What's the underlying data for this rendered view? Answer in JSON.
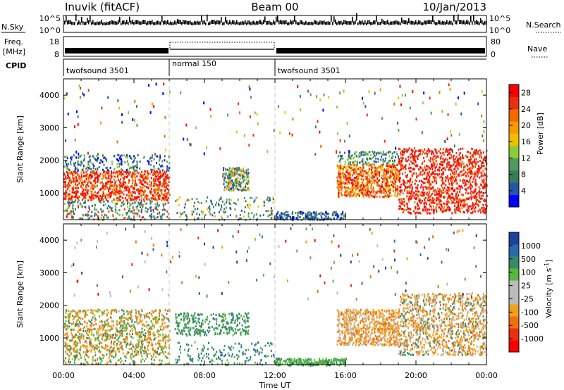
{
  "header": {
    "station": "Inuvik (fitACF)",
    "beam": "Beam 00",
    "date": "10/Jan/2013"
  },
  "noise_panel": {
    "left_label": "N.Sky",
    "right_label": "N.Search",
    "left_ticks": [
      "10^5",
      "10^0"
    ],
    "right_ticks": [
      "10^5",
      "10^0"
    ]
  },
  "freq_panel": {
    "left_label_1": "Freq.",
    "left_label_2": "[MHz]",
    "right_label": "Nave",
    "left_ticks": [
      "18",
      "8"
    ],
    "right_ticks": [
      "80",
      "0"
    ]
  },
  "cpid_panel": {
    "label": "CPID",
    "segments": [
      {
        "name": "twofsound 3501",
        "start": "00:00",
        "end": "06:00"
      },
      {
        "name": "normal 150",
        "start": "06:00",
        "end": "12:00"
      },
      {
        "name": "twofsound 3501",
        "start": "12:00",
        "end": "24:00"
      }
    ]
  },
  "x_axis": {
    "label": "Time UT",
    "ticks": [
      "00:00",
      "04:00",
      "08:00",
      "12:00",
      "16:00",
      "20:00",
      "00:00"
    ],
    "range_hours": [
      0,
      24
    ]
  },
  "colors": {
    "power": [
      "#0000ff",
      "#2356a8",
      "#3c7a5a",
      "#4f9a5e",
      "#8ccc3c",
      "#f0c000",
      "#f59a00",
      "#f06a00",
      "#e83010",
      "#ff0000"
    ],
    "velocity": [
      "#2040a0",
      "#2a6aa8",
      "#3a8a6a",
      "#57b840",
      "#bbbbbb",
      "#bbbbbb",
      "#f0a020",
      "#f07010",
      "#e83010",
      "#ff0000"
    ]
  },
  "chart_data": [
    {
      "type": "heatmap",
      "title": "",
      "xlabel": "",
      "ylabel": "Slant Range [km]",
      "x_range_hours": [
        0,
        24
      ],
      "ylim": [
        180,
        4500
      ],
      "y_ticks": [
        "1000",
        "2000",
        "3000",
        "4000"
      ],
      "colorbar": {
        "label": "Power [dB]",
        "ticks": [
          "4",
          "8",
          "12",
          "16",
          "20",
          "24",
          "28"
        ],
        "range": [
          0,
          30
        ]
      },
      "features": [
        {
          "t_start": "00:00",
          "t_end": "06:00",
          "range_low": 700,
          "range_high": 1900,
          "value": "20-30 dB"
        },
        {
          "t_start": "09:00",
          "t_end": "10:30",
          "range_low": 1100,
          "range_high": 1800,
          "value": "8-16 dB"
        },
        {
          "t_start": "15:30",
          "t_end": "19:00",
          "range_low": 900,
          "range_high": 2000,
          "value": "16-28 dB"
        },
        {
          "t_start": "19:00",
          "t_end": "24:00",
          "range_low": 500,
          "range_high": 2500,
          "value": "24-30 dB"
        }
      ]
    },
    {
      "type": "heatmap",
      "title": "",
      "xlabel": "Time UT",
      "ylabel": "Slant Range [km]",
      "x_range_hours": [
        0,
        24
      ],
      "ylim": [
        180,
        4500
      ],
      "y_ticks": [
        "1000",
        "2000",
        "3000",
        "4000"
      ],
      "colorbar": {
        "label": "Velocity [m s^-1]",
        "ticks": [
          "1000",
          "500",
          "100",
          "25",
          "-25",
          "-100",
          "-500",
          "-1000"
        ]
      },
      "features": [
        {
          "t_start": "00:00",
          "t_end": "06:00",
          "range_low": 500,
          "range_high": 2000,
          "value": "-100 to 100"
        },
        {
          "t_start": "06:00",
          "t_end": "10:30",
          "range_low": 1100,
          "range_high": 1800,
          "value": "100"
        },
        {
          "t_start": "12:00",
          "t_end": "16:00",
          "range_low": 180,
          "range_high": 400,
          "value": "100 to 500"
        },
        {
          "t_start": "15:30",
          "t_end": "24:00",
          "range_low": 500,
          "range_high": 2500,
          "value": "-100 to -500"
        }
      ]
    }
  ]
}
